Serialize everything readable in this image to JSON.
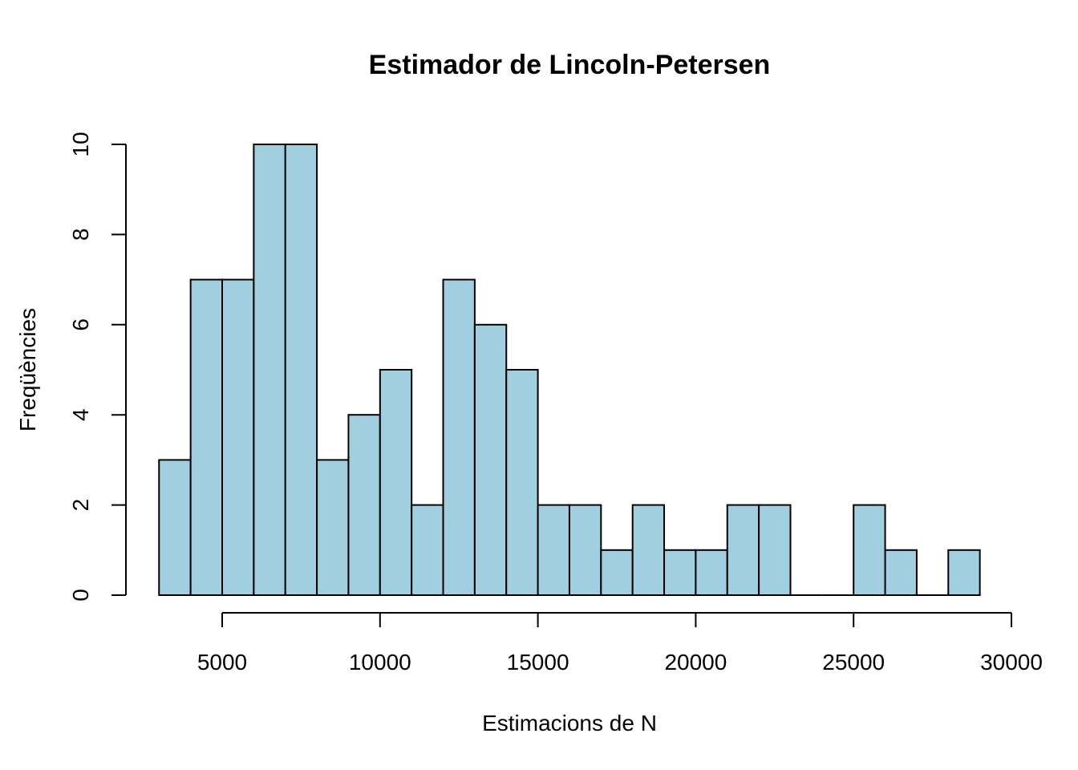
{
  "chart_data": {
    "type": "bar",
    "title": "Estimador de Lincoln-Petersen",
    "xlabel": "Estimacions de N",
    "ylabel": "Freqüències",
    "bin_width": 1000,
    "bin_starts": [
      3000,
      4000,
      5000,
      6000,
      7000,
      8000,
      9000,
      10000,
      11000,
      12000,
      13000,
      14000,
      15000,
      16000,
      17000,
      18000,
      19000,
      20000,
      21000,
      22000,
      23000,
      24000,
      25000,
      26000,
      27000,
      28000
    ],
    "values": [
      3,
      7,
      7,
      10,
      10,
      3,
      4,
      5,
      2,
      7,
      6,
      5,
      2,
      2,
      1,
      2,
      1,
      1,
      2,
      2,
      0,
      0,
      2,
      1,
      0,
      1
    ],
    "xlim": [
      3000,
      29000
    ],
    "ylim": [
      0,
      10
    ],
    "xticks": [
      5000,
      10000,
      15000,
      20000,
      25000,
      30000
    ],
    "xtick_labels": [
      "5000",
      "10000",
      "15000",
      "20000",
      "25000",
      "30000"
    ],
    "yticks": [
      0,
      2,
      4,
      6,
      8,
      10
    ],
    "ytick_labels": [
      "0",
      "2",
      "4",
      "6",
      "8",
      "10"
    ],
    "bar_color": "#a1cfe0",
    "edge_color": "#000000",
    "grid": false,
    "legend": "none"
  }
}
